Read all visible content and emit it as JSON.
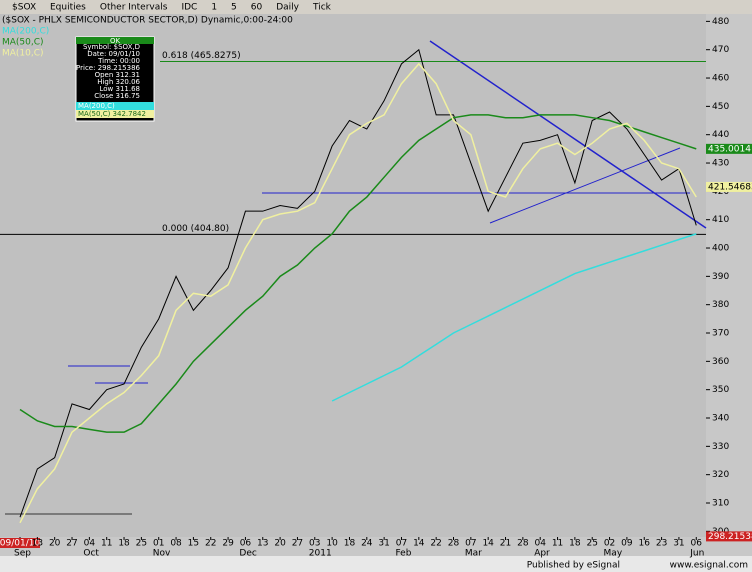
{
  "toolbar": {
    "symbol": "$SOX",
    "items": [
      "Equities",
      "Other Intervals",
      "IDC",
      "1",
      "5",
      "60",
      "Daily",
      "Tick"
    ]
  },
  "chart_data": {
    "type": "line",
    "title": "($SOX - PHLX SEMICONDUCTOR SECTOR,D) Dynamic,0:00-24:00",
    "categories": [
      "09/01/10",
      "13",
      "20",
      "27",
      "04",
      "11",
      "18",
      "25",
      "01",
      "08",
      "15",
      "22",
      "29",
      "06",
      "13",
      "20",
      "27",
      "03",
      "10",
      "18",
      "24",
      "31",
      "07",
      "14",
      "22",
      "28",
      "07",
      "14",
      "21",
      "28",
      "04",
      "11",
      "18",
      "25",
      "02",
      "09",
      "16",
      "23",
      "31",
      "06"
    ],
    "months": [
      "Sep",
      "Oct",
      "Nov",
      "Dec",
      "2011",
      "Feb",
      "Mar",
      "Apr",
      "May",
      "Jun"
    ],
    "series": [
      {
        "name": "$SOX",
        "color": "#000000",
        "values": [
          305,
          322,
          326,
          345,
          343,
          350,
          352,
          365,
          375,
          390,
          378,
          385,
          393,
          413,
          413,
          415,
          414,
          420,
          436,
          445,
          442,
          452,
          465,
          470,
          447,
          447,
          430,
          413,
          425,
          437,
          438,
          440,
          423,
          445,
          448,
          442,
          433,
          424,
          428,
          408
        ]
      },
      {
        "name": "MA(200,C)",
        "color": "#33dddd",
        "values": [
          null,
          null,
          null,
          null,
          null,
          null,
          null,
          null,
          null,
          null,
          null,
          null,
          null,
          null,
          null,
          null,
          null,
          null,
          346,
          349,
          352,
          355,
          358,
          362,
          366,
          370,
          373,
          376,
          379,
          382,
          385,
          388,
          391,
          393,
          395,
          397,
          399,
          401,
          403,
          405
        ]
      },
      {
        "name": "MA(50,C)",
        "color": "#1a8a1a",
        "values": [
          343,
          339,
          337,
          337,
          336,
          335,
          335,
          338,
          345,
          352,
          360,
          366,
          372,
          378,
          383,
          390,
          394,
          400,
          405,
          413,
          418,
          425,
          432,
          438,
          442,
          446,
          447,
          447,
          446,
          446,
          447,
          447,
          447,
          446,
          445,
          443,
          441,
          439,
          437,
          435
        ]
      },
      {
        "name": "MA(10,C)",
        "color": "#f0f0a0",
        "values": [
          303,
          315,
          322,
          335,
          340,
          345,
          349,
          355,
          362,
          378,
          384,
          383,
          387,
          400,
          410,
          412,
          413,
          416,
          428,
          440,
          444,
          447,
          458,
          465,
          458,
          445,
          440,
          420,
          418,
          428,
          435,
          437,
          433,
          437,
          442,
          444,
          438,
          430,
          428,
          418
        ]
      }
    ],
    "ylim": [
      298.0,
      482.6
    ],
    "yticks": [
      300,
      310,
      320,
      330,
      340,
      350,
      360,
      370,
      380,
      390,
      400,
      410,
      420,
      430,
      440,
      450,
      460,
      470,
      480
    ],
    "annotations": [
      {
        "label": "0.618 (465.8275)",
        "value": 465.8275,
        "color": "#1a8a1a"
      },
      {
        "label": "0.000 (404.80)",
        "value": 404.8,
        "color": "#000000"
      }
    ],
    "value_tags": [
      {
        "label": "435.0014",
        "value": 435.0014,
        "color": "#1a8a1a"
      },
      {
        "label": "421.546831",
        "value": 421.546831,
        "color": "#f0f0a0"
      },
      {
        "label": "298.215386",
        "value": 298.215386,
        "color": "#cc2222"
      }
    ]
  },
  "info_box": {
    "header": "OK",
    "rows": [
      "Symbol: $SOX,D",
      "Date: 09/01/10",
      "Time: 00:00",
      "Price: 298.215386",
      "Open 312.31",
      "High 320.06",
      "Low 311.68",
      "Close 316.75"
    ],
    "ma_rows": [
      "MA(200,C)",
      "MA(50,C) 342.7842"
    ]
  },
  "footer": {
    "published": "Published by eSignal",
    "url": "www.esignal.com"
  }
}
